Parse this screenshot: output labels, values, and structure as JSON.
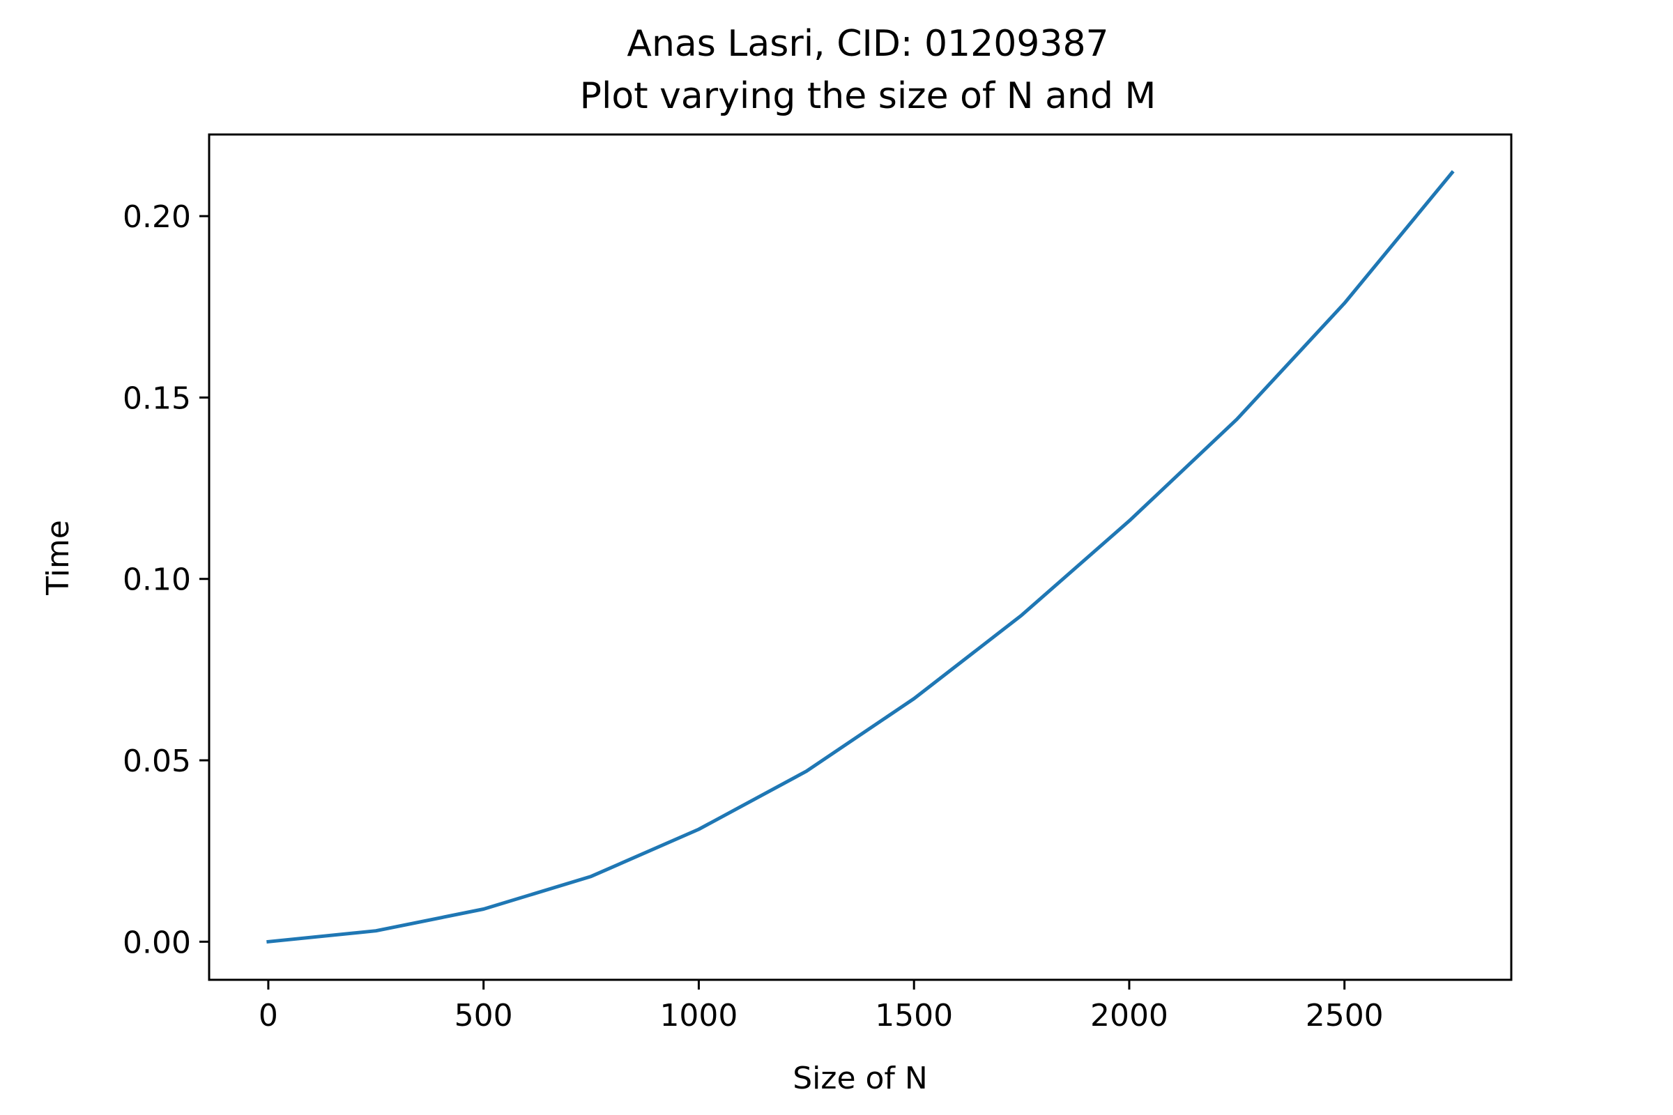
{
  "chart_data": {
    "type": "line",
    "title": "Anas Lasri, CID: 01209387",
    "subtitle": "Plot varying the size of N and M",
    "xlabel": "Size of N",
    "ylabel": "Time",
    "xlim": [
      -137.5,
      2887.5
    ],
    "ylim": [
      -0.0105,
      0.2225
    ],
    "xticks": [
      0,
      500,
      1000,
      1500,
      2000,
      2500
    ],
    "xtick_labels": [
      "0",
      "500",
      "1000",
      "1500",
      "2000",
      "2500"
    ],
    "yticks": [
      0.0,
      0.05,
      0.1,
      0.15,
      0.2
    ],
    "ytick_labels": [
      "0.00",
      "0.05",
      "0.10",
      "0.15",
      "0.20"
    ],
    "grid": false,
    "legend": "none",
    "series": [
      {
        "color": "#1f77b4",
        "x": [
          0,
          250,
          500,
          750,
          1000,
          1250,
          1500,
          1750,
          2000,
          2250,
          2500,
          2750
        ],
        "y": [
          0.0,
          0.003,
          0.009,
          0.018,
          0.031,
          0.047,
          0.067,
          0.09,
          0.116,
          0.144,
          0.176,
          0.212
        ]
      }
    ]
  }
}
